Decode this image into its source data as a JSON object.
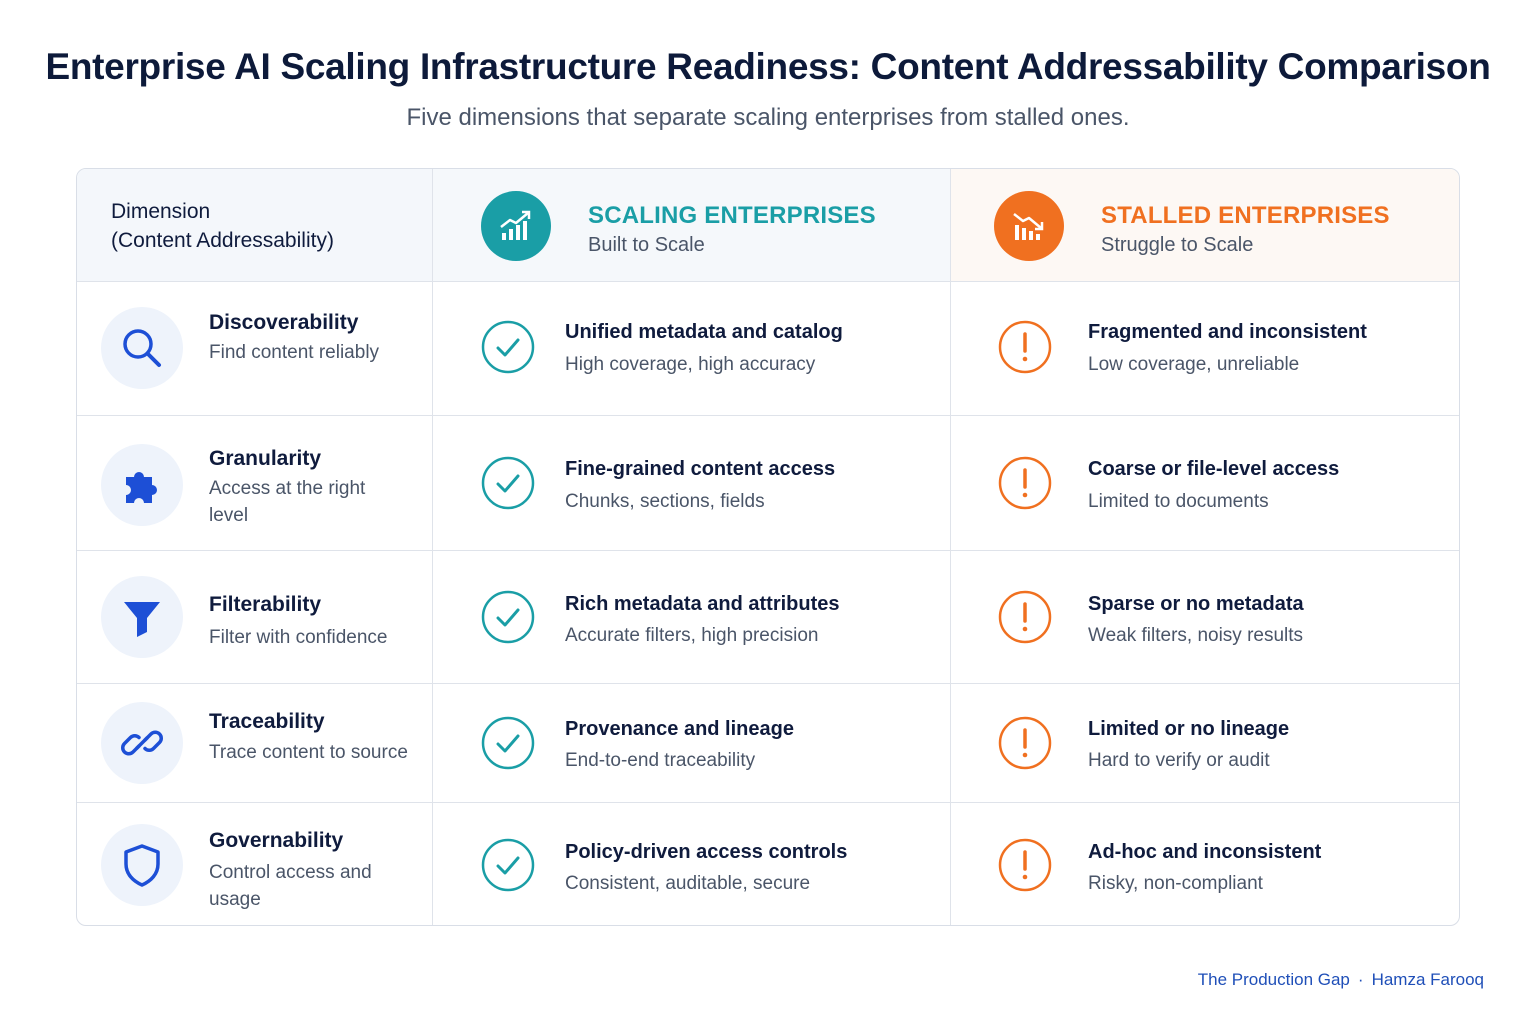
{
  "title": "Enterprise AI Scaling Infrastructure Readiness: Content Addressability Comparison",
  "subtitle": "Five dimensions that separate scaling enterprises from stalled ones.",
  "header": {
    "dimension_line1": "Dimension",
    "dimension_line2": "(Content Addressability)",
    "scaling_title": "SCALING ENTERPRISES",
    "scaling_sub": "Built to Scale",
    "stalled_title": "STALLED ENTERPRISES",
    "stalled_sub": "Struggle to Scale"
  },
  "colors": {
    "scaling": "#1a9ea6",
    "stalled": "#f07020",
    "dim_icon": "#1d4fd6"
  },
  "rows": [
    {
      "icon": "search-icon",
      "name": "Discoverability",
      "desc": "Find content reliably",
      "scaling_title": "Unified metadata and catalog",
      "scaling_sub": "High coverage, high accuracy",
      "stalled_title": "Fragmented and inconsistent",
      "stalled_sub": "Low coverage, unreliable"
    },
    {
      "icon": "puzzle-icon",
      "name": "Granularity",
      "desc": "Access at the right level",
      "scaling_title": "Fine-grained content access",
      "scaling_sub": "Chunks, sections, fields",
      "stalled_title": "Coarse or file-level access",
      "stalled_sub": "Limited to documents"
    },
    {
      "icon": "filter-icon",
      "name": "Filterability",
      "desc": "Filter with confidence",
      "scaling_title": "Rich metadata and attributes",
      "scaling_sub": "Accurate filters, high precision",
      "stalled_title": "Sparse or no metadata",
      "stalled_sub": "Weak filters, noisy results"
    },
    {
      "icon": "link-icon",
      "name": "Traceability",
      "desc": "Trace content to source",
      "scaling_title": "Provenance and lineage",
      "scaling_sub": "End-to-end traceability",
      "stalled_title": "Limited or no lineage",
      "stalled_sub": "Hard to verify or audit"
    },
    {
      "icon": "shield-icon",
      "name": "Governability",
      "desc": "Control access and usage",
      "scaling_title": "Policy-driven access controls",
      "scaling_sub": "Consistent, auditable, secure",
      "stalled_title": "Ad-hoc and inconsistent",
      "stalled_sub": "Risky, non-compliant"
    }
  ],
  "footer": {
    "left": "The Production Gap",
    "right": "Hamza Farooq"
  }
}
